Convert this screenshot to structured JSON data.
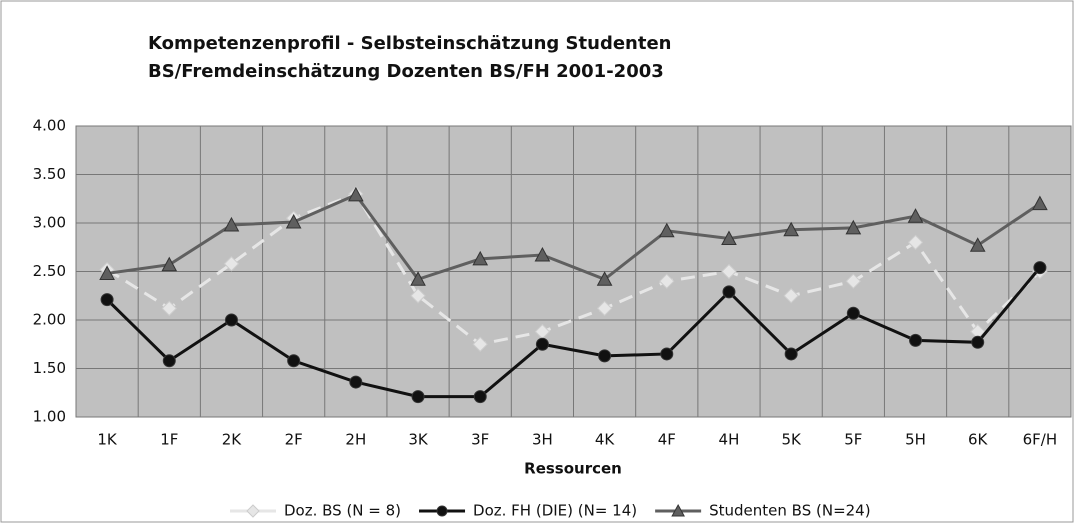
{
  "chart_data": {
    "type": "line",
    "title": [
      "Kompetenzenprofil - Selbsteinschätzung Studenten",
      "BS/Fremdeinschätzung Dozenten BS/FH 2001-2003"
    ],
    "x_label": "Ressourcen",
    "categories": [
      "1K",
      "1F",
      "2K",
      "2F",
      "2H",
      "3K",
      "3F",
      "3H",
      "4K",
      "4F",
      "4H",
      "5K",
      "5F",
      "5H",
      "6K",
      "6F/H"
    ],
    "series": [
      {
        "name": "Doz. BS (N = 8)",
        "color": "#e6e6e6",
        "marker": "diamond",
        "dashed": true,
        "values": [
          2.52,
          2.12,
          2.58,
          3.05,
          3.3,
          2.25,
          1.75,
          1.88,
          2.12,
          2.4,
          2.5,
          2.25,
          2.4,
          2.8,
          1.88,
          2.5
        ]
      },
      {
        "name": "Doz. FH (DIE) (N= 14)",
        "color": "#111111",
        "marker": "circle",
        "dashed": false,
        "values": [
          2.21,
          1.58,
          2.0,
          1.58,
          1.36,
          1.21,
          1.21,
          1.75,
          1.63,
          1.65,
          2.29,
          1.65,
          2.07,
          1.79,
          1.77,
          2.54
        ]
      },
      {
        "name": "Studenten BS (N=24)",
        "color": "#5f5f5f",
        "marker": "triangle",
        "dashed": false,
        "values": [
          2.48,
          2.57,
          2.98,
          3.01,
          3.29,
          2.42,
          2.63,
          2.67,
          2.42,
          2.92,
          2.84,
          2.93,
          2.95,
          3.07,
          2.77,
          3.2
        ]
      }
    ],
    "ylim": [
      1,
      4
    ],
    "yticks": [
      {
        "value": 1,
        "label": "1.00"
      },
      {
        "value": 1.5,
        "label": "1.50"
      },
      {
        "value": 2,
        "label": "2.00"
      },
      {
        "value": 2.5,
        "label": "2.50"
      },
      {
        "value": 3,
        "label": "3.00"
      },
      {
        "value": 3.5,
        "label": "3.50"
      },
      {
        "value": 4,
        "label": "4.00"
      }
    ],
    "grid": true,
    "plot_background": "#c0c0c0",
    "legend": "bottom"
  }
}
